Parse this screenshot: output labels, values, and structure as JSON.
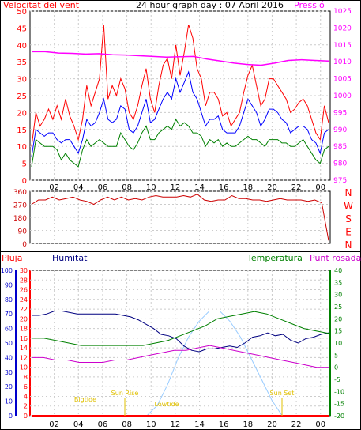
{
  "chart_data": [
    {
      "type": "line",
      "title": "24 hour graph day : 07 Abril 2016",
      "left_label": "Velocitat del vent",
      "right_label": "Pressió",
      "x_ticks": [
        "02",
        "04",
        "06",
        "08",
        "10",
        "12",
        "14",
        "16",
        "18",
        "20",
        "22",
        "00"
      ],
      "y_left_ticks": [
        "0",
        "5",
        "10",
        "15",
        "20",
        "25",
        "30",
        "35",
        "40",
        "45",
        "50"
      ],
      "y_left_range": [
        0,
        50
      ],
      "y_right_ticks": [
        "975",
        "980",
        "985",
        "990",
        "995",
        "1000",
        "1005",
        "1010",
        "1015",
        "1020",
        "1025"
      ],
      "y_right_range": [
        975,
        1025
      ],
      "series": [
        {
          "name": "gust",
          "color": "#ff0000",
          "values": [
            10,
            20,
            16,
            18,
            21,
            18,
            22,
            18,
            24,
            19,
            16,
            12,
            18,
            28,
            22,
            26,
            30,
            46,
            24,
            28,
            25,
            30,
            27,
            20,
            18,
            22,
            28,
            33,
            24,
            20,
            28,
            34,
            36,
            30,
            40,
            31,
            38,
            46,
            42,
            33,
            30,
            22,
            26,
            26,
            24,
            19,
            20,
            16,
            18,
            20,
            26,
            31,
            34,
            28,
            22,
            24,
            30,
            30,
            28,
            26,
            24,
            20,
            21,
            23,
            24,
            22,
            18,
            14,
            12,
            22,
            17
          ]
        },
        {
          "name": "average",
          "color": "#0000ff",
          "values": [
            7,
            15,
            14,
            13,
            14,
            14,
            12,
            11,
            12,
            12,
            10,
            8,
            12,
            18,
            16,
            17,
            20,
            24,
            18,
            17,
            18,
            22,
            21,
            15,
            14,
            16,
            20,
            24,
            17,
            18,
            21,
            24,
            26,
            24,
            30,
            26,
            29,
            32,
            26,
            24,
            20,
            16,
            18,
            18,
            19,
            15,
            14,
            14,
            14,
            16,
            20,
            24,
            22,
            20,
            16,
            18,
            21,
            21,
            20,
            18,
            17,
            14,
            15,
            16,
            16,
            15,
            12,
            11,
            8,
            14,
            15
          ]
        },
        {
          "name": "min",
          "color": "#008000",
          "values": [
            4,
            12,
            11,
            10,
            10,
            10,
            9,
            6,
            8,
            6,
            5,
            4,
            9,
            12,
            10,
            11,
            12,
            11,
            10,
            10,
            10,
            14,
            12,
            10,
            9,
            11,
            14,
            16,
            12,
            12,
            14,
            15,
            16,
            15,
            18,
            16,
            17,
            16,
            14,
            14,
            13,
            10,
            12,
            11,
            12,
            10,
            11,
            10,
            10,
            11,
            12,
            13,
            12,
            12,
            11,
            10,
            12,
            12,
            12,
            11,
            11,
            10,
            10,
            11,
            12,
            10,
            8,
            6,
            5,
            9,
            10
          ]
        },
        {
          "name": "pressure",
          "color": "#ff00ff",
          "axis": "right",
          "values": [
            1013.0,
            1013.0,
            1012.6,
            1012.5,
            1012.3,
            1012.4,
            1012.1,
            1012.0,
            1011.8,
            1011.6,
            1011.4,
            1011.5,
            1011.6,
            1010.8,
            1010.2,
            1009.6,
            1009.2,
            1009.0,
            1009.6,
            1010.4,
            1010.6,
            1010.4,
            1010.2
          ]
        }
      ]
    },
    {
      "type": "line",
      "title": "",
      "direction_labels": [
        "N",
        "W",
        "S",
        "E",
        "N"
      ],
      "y_ticks": [
        "0",
        "90",
        "180",
        "270",
        "360"
      ],
      "y_range": [
        0,
        360
      ],
      "series": [
        {
          "name": "wind-direction",
          "color": "#cc0000",
          "values": [
            270,
            300,
            300,
            320,
            300,
            310,
            320,
            300,
            290,
            270,
            300,
            320,
            300,
            320,
            300,
            310,
            300,
            320,
            330,
            320,
            320,
            320,
            330,
            320,
            340,
            300,
            290,
            300,
            300,
            330,
            310,
            310,
            300,
            300,
            290,
            300,
            310,
            300,
            300,
            300,
            290,
            300,
            280,
            20
          ]
        }
      ]
    },
    {
      "type": "line",
      "labels": {
        "rain": "Pluja",
        "humidity": "Humitat",
        "temperature": "Temperatura",
        "dewpoint": "Punt rosada"
      },
      "y_humidity_ticks": [
        "0",
        "10",
        "20",
        "30",
        "40",
        "50",
        "60",
        "70",
        "80",
        "90",
        "100"
      ],
      "y_humidity_range": [
        0,
        100
      ],
      "y_rain_ticks": [
        "0",
        "2",
        "4",
        "6",
        "8",
        "10",
        "12",
        "14",
        "16",
        "18",
        "20",
        "22",
        "24",
        "26",
        "28",
        "30"
      ],
      "y_rain_range": [
        0,
        30
      ],
      "y_temp_ticks": [
        "-20",
        "-15",
        "-10",
        "-5",
        "0",
        "5",
        "10",
        "15",
        "20",
        "25",
        "30",
        "35",
        "40"
      ],
      "y_temp_range": [
        -20,
        40
      ],
      "annotations": {
        "sunrise": "Sun Rise",
        "sunset": "Sun Set",
        "low_tide": "Lowtide",
        "high_tide": "Bigtide"
      },
      "series": [
        {
          "name": "humidity",
          "color": "#000080",
          "values": [
            69,
            69,
            70,
            72,
            72,
            71,
            70,
            70,
            70,
            70,
            70,
            70,
            69,
            68,
            66,
            63,
            60,
            56,
            55,
            53,
            48,
            45,
            44,
            46,
            46,
            47,
            48,
            47,
            50,
            54,
            55,
            57,
            55,
            56,
            52,
            50,
            53,
            54,
            56,
            57
          ]
        },
        {
          "name": "temperature",
          "color": "#008000",
          "values": [
            12,
            12,
            11,
            10,
            9,
            9,
            9,
            9,
            9,
            9,
            10,
            11,
            13,
            15,
            17,
            20,
            21,
            22,
            23,
            22,
            20,
            18,
            16,
            15,
            14
          ]
        },
        {
          "name": "dewpoint",
          "color": "#cc00cc",
          "values": [
            4,
            4,
            3,
            3,
            2,
            2,
            2,
            3,
            3,
            4,
            5,
            6,
            7,
            7,
            8,
            9,
            8,
            7,
            6,
            5,
            4,
            3,
            2,
            1,
            0,
            0
          ]
        },
        {
          "name": "solar",
          "color": "#99ccff",
          "values": [
            0,
            0,
            0,
            10,
            30,
            55,
            75,
            90,
            100,
            100,
            90,
            75,
            55,
            35,
            15,
            0
          ]
        },
        {
          "name": "rain",
          "color": "#ff0000",
          "values": [
            0,
            0,
            0,
            0,
            0,
            0,
            0,
            0,
            0,
            0,
            0,
            0
          ]
        }
      ]
    }
  ]
}
